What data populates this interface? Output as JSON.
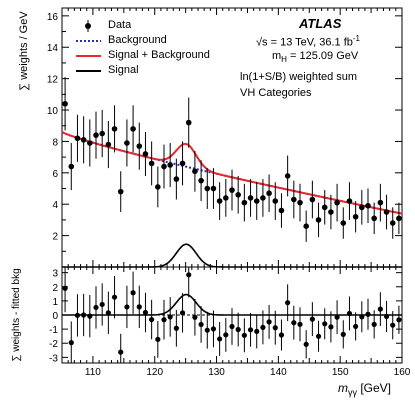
{
  "chart_data": [
    {
      "type": "scatter",
      "panel": "main",
      "experiment": "ATLAS",
      "ylabel": "∑ weights / GeV",
      "ylim": [
        0,
        16.5
      ],
      "yticks": [
        2,
        4,
        6,
        8,
        10,
        12,
        14,
        16
      ],
      "xlim": [
        105,
        160
      ],
      "xticks": [
        110,
        120,
        130,
        140,
        150,
        160
      ],
      "annotations": {
        "energy_prefix": "√s = 13 TeV, 36.1 fb",
        "energy_sup": "-1",
        "mass_prefix": "m",
        "mass_sub": "H",
        "mass_suffix": " = 125.09 GeV",
        "weighting": "ln(1+S/B) weighted sum",
        "category": "VH Categories"
      },
      "legend": [
        "Data",
        "Background",
        "Signal + Background",
        "Signal"
      ],
      "legend_placement": "top-left",
      "colors": {
        "data": "#000000",
        "background": "#1f2fbf",
        "sb": "#e8262b",
        "signal": "#000000"
      },
      "series": [
        {
          "name": "Data",
          "x": [
            105.5,
            106.5,
            107.5,
            108.5,
            109.5,
            110.5,
            111.5,
            112.5,
            113.5,
            114.5,
            115.5,
            116.5,
            117.5,
            118.5,
            119.5,
            120.5,
            121.5,
            122.5,
            123.5,
            124.5,
            125.5,
            126.5,
            127.5,
            128.5,
            129.5,
            130.5,
            131.5,
            132.5,
            133.5,
            134.5,
            135.5,
            136.5,
            137.5,
            138.5,
            139.5,
            140.5,
            141.5,
            142.5,
            143.5,
            144.5,
            145.5,
            146.5,
            147.5,
            148.5,
            149.5,
            150.5,
            151.5,
            152.5,
            153.5,
            154.5,
            155.5,
            156.5,
            157.5,
            158.5,
            159.5
          ],
          "y": [
            10.4,
            6.4,
            8.2,
            8.1,
            7.9,
            8.4,
            8.5,
            7.8,
            8.8,
            4.8,
            7.9,
            8.8,
            7.7,
            7.2,
            6.6,
            5.1,
            6.4,
            6.5,
            5.6,
            6.6,
            9.2,
            6.1,
            5.5,
            5.0,
            5.0,
            4.2,
            4.4,
            4.9,
            4.6,
            4.1,
            4.4,
            4.2,
            4.4,
            4.7,
            4.2,
            3.6,
            5.8,
            4.3,
            4.1,
            2.6,
            4.3,
            3.0,
            3.8,
            3.5,
            4.1,
            2.8,
            4.2,
            3.2,
            3.8,
            3.9,
            3.1,
            4.1,
            3.5,
            2.8,
            3.1
          ],
          "yerr": [
            1.7,
            1.5,
            1.5,
            1.5,
            1.5,
            1.5,
            1.5,
            1.5,
            1.5,
            1.3,
            1.5,
            1.5,
            1.5,
            1.4,
            1.4,
            1.3,
            1.4,
            1.4,
            1.3,
            1.4,
            1.6,
            1.3,
            1.3,
            1.3,
            1.3,
            1.2,
            1.2,
            1.3,
            1.2,
            1.2,
            1.2,
            1.2,
            1.2,
            1.2,
            1.2,
            1.1,
            1.3,
            1.2,
            1.2,
            1.0,
            1.2,
            1.1,
            1.1,
            1.1,
            1.2,
            1.0,
            1.2,
            1.0,
            1.1,
            1.1,
            1.0,
            1.2,
            1.1,
            1.0,
            1.0
          ]
        },
        {
          "name": "Background",
          "model": "falling",
          "at_105": 8.6,
          "at_160": 3.4
        },
        {
          "name": "Signal + Background",
          "model": "background + signal"
        },
        {
          "name": "Signal",
          "model": "gaussian",
          "mean": 125.09,
          "sigma": 1.6,
          "amplitude": 1.45
        }
      ]
    },
    {
      "type": "scatter",
      "panel": "residual",
      "ylabel": "∑ weights - fitted bkg",
      "ylim": [
        -3.4,
        3.4
      ],
      "yticks": [
        -3,
        -2,
        -1,
        0,
        1,
        2,
        3
      ],
      "xlabel_var": "m",
      "xlabel_sub": "γγ",
      "xlabel_unit": " [GeV]",
      "xlim": [
        105,
        160
      ],
      "xticks": [
        110,
        120,
        130,
        140,
        150,
        160
      ],
      "tick_labels": [
        "110",
        "120",
        "130",
        "140",
        "150",
        "160"
      ],
      "reference_line": 0,
      "residuals_of": "Data minus Background",
      "signal_curve": "Signal"
    }
  ]
}
